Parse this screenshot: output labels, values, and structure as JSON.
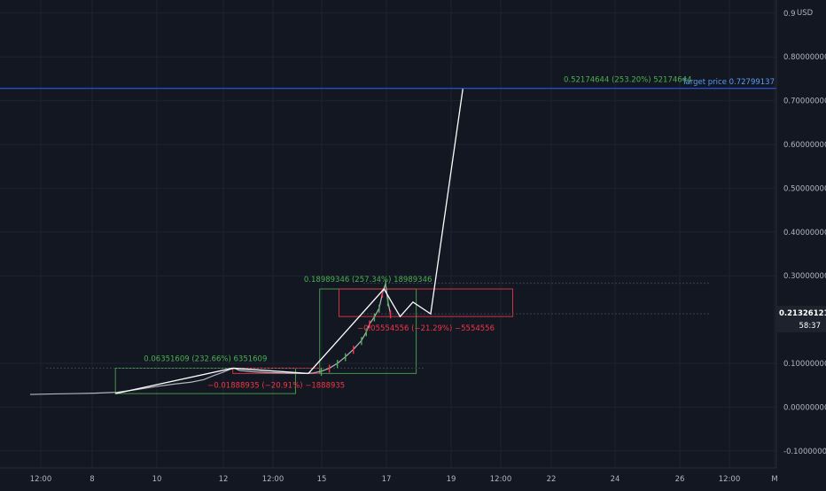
{
  "chart_data": {
    "type": "line",
    "currency_label": "USD",
    "ylim": [
      -0.13,
      0.9
    ],
    "y_ticks": [
      {
        "value": 0.9,
        "label": "0.9"
      },
      {
        "value": 0.8,
        "label": "0.80000000"
      },
      {
        "value": 0.7,
        "label": "0.70000000"
      },
      {
        "value": 0.6,
        "label": "0.60000000"
      },
      {
        "value": 0.5,
        "label": "0.50000000"
      },
      {
        "value": 0.4,
        "label": "0.40000000"
      },
      {
        "value": 0.3,
        "label": "0.30000000"
      },
      {
        "value": 0.1,
        "label": "0.10000000"
      },
      {
        "value": 0.0,
        "label": "0.00000000"
      },
      {
        "value": -0.1,
        "label": "-0.10000000"
      }
    ],
    "x_ticks": [
      "12:00",
      "8",
      "10",
      "12",
      "12:00",
      "15",
      "17",
      "19",
      "12:00",
      "22",
      "24",
      "26",
      "12:00",
      "M"
    ],
    "current_price": {
      "value": 0.21326121,
      "label": "0.21326121",
      "countdown": "58:37"
    },
    "target_price": {
      "value": 0.72799137,
      "label": "Target price 0.72799137"
    },
    "price_series": [
      [
        0,
        0.029
      ],
      [
        0.6,
        0.03
      ],
      [
        1.4,
        0.031
      ],
      [
        2.0,
        0.032
      ],
      [
        2.7,
        0.034
      ],
      [
        3.3,
        0.04
      ],
      [
        3.9,
        0.047
      ],
      [
        4.5,
        0.053
      ],
      [
        5.0,
        0.057
      ],
      [
        5.4,
        0.063
      ],
      [
        5.7,
        0.072
      ],
      [
        6.0,
        0.08
      ],
      [
        6.2,
        0.086
      ],
      [
        6.35,
        0.089
      ],
      [
        6.5,
        0.084
      ],
      [
        6.9,
        0.081
      ],
      [
        7.4,
        0.079
      ],
      [
        7.9,
        0.078
      ],
      [
        8.5,
        0.077
      ],
      [
        8.8,
        0.078
      ],
      [
        9.05,
        0.082
      ],
      [
        9.3,
        0.089
      ],
      [
        9.55,
        0.1
      ],
      [
        9.8,
        0.115
      ],
      [
        10.05,
        0.132
      ],
      [
        10.3,
        0.152
      ],
      [
        10.45,
        0.172
      ],
      [
        10.55,
        0.19
      ],
      [
        10.7,
        0.206
      ],
      [
        10.85,
        0.226
      ],
      [
        10.95,
        0.26
      ],
      [
        11.05,
        0.283
      ],
      [
        11.12,
        0.241
      ],
      [
        11.2,
        0.213
      ]
    ],
    "projection_path": [
      [
        6.3,
        0.089
      ],
      [
        8.65,
        0.077
      ],
      [
        11.0,
        0.27
      ],
      [
        11.5,
        0.207
      ],
      [
        11.9,
        0.24
      ],
      [
        12.45,
        0.213
      ],
      [
        13.45,
        0.727
      ]
    ],
    "triangle_base": [
      [
        2.65,
        0.031
      ],
      [
        6.3,
        0.089
      ]
    ],
    "measures": [
      {
        "color": "green",
        "label": "0.06351609 (232.66%) 6351609",
        "x0": 2.65,
        "x1": 8.25,
        "y0": 0.031,
        "y1": 0.089
      },
      {
        "color": "red",
        "label": "−0.01888935 (−20.91%) −1888935",
        "x0": 6.3,
        "x1": 9.0,
        "y0": 0.077,
        "y1": 0.089
      },
      {
        "color": "green",
        "label": "0.18989346 (257.34%) 18989346",
        "x0": 9.0,
        "x1": 12.0,
        "y0": 0.077,
        "y1": 0.27
      },
      {
        "color": "red",
        "label": "−0.05554556 (−21.29%) −5554556",
        "x0": 9.6,
        "x1": 15.0,
        "y0": 0.207,
        "y1": 0.27
      },
      {
        "color": "green",
        "label": "0.52174644 (253.20%) 52174644",
        "x0": 12.45,
        "x1": 13.45,
        "y0": 0.213,
        "y1": 0.727
      }
    ],
    "colors": {
      "background": "#131722",
      "grid": "#1f2330",
      "axis_text": "#b2b5be",
      "price": "#b2b5be",
      "projection": "#ffffff",
      "measure_green": "#4caf50",
      "measure_red": "#f23645",
      "target_line": "#2962ff",
      "target_text": "#5b9cf6",
      "current_tag_bg": "#1e222d",
      "current_tag_text": "#ffffff"
    }
  }
}
